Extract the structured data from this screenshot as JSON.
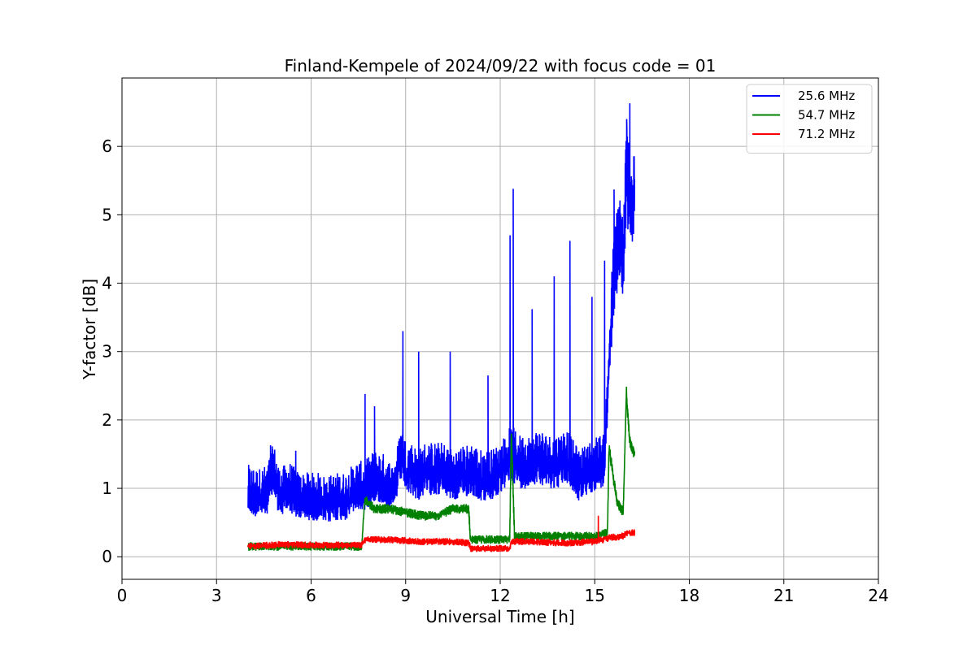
{
  "chart_data": {
    "type": "line",
    "title": "Finland-Kempele of 2024/09/22 with focus code = 01",
    "xlabel": "Universal Time [h]",
    "ylabel": "Y-factor [dB]",
    "xlim": [
      0,
      24
    ],
    "ylim": [
      -0.33,
      7.0
    ],
    "xticks": [
      0,
      3,
      6,
      9,
      12,
      15,
      18,
      21,
      24
    ],
    "yticks": [
      0,
      1,
      2,
      3,
      4,
      5,
      6
    ],
    "grid": true,
    "legend_position": "top-right",
    "series": [
      {
        "name": "25.6 MHz",
        "color": "#0000ff",
        "x": [
          4.0,
          4.3,
          4.6,
          4.8,
          5.0,
          5.3,
          5.6,
          5.9,
          6.2,
          6.5,
          6.8,
          7.1,
          7.4,
          7.7,
          8.0,
          8.3,
          8.6,
          8.9,
          9.0,
          9.2,
          9.4,
          9.6,
          9.9,
          10.2,
          10.5,
          10.8,
          11.1,
          11.4,
          11.7,
          12.0,
          12.3,
          12.4,
          12.6,
          12.9,
          13.2,
          13.5,
          13.8,
          14.1,
          14.2,
          14.5,
          14.8,
          15.1,
          15.3,
          15.5,
          15.6,
          15.8,
          15.9,
          16.0,
          16.1,
          16.2,
          16.25
        ],
        "values": [
          0.9,
          0.85,
          0.9,
          1.2,
          0.85,
          0.95,
          0.8,
          0.8,
          0.8,
          0.75,
          0.8,
          0.8,
          0.95,
          0.95,
          1.1,
          1.05,
          0.9,
          1.5,
          1.2,
          1.2,
          1.1,
          1.2,
          1.2,
          1.2,
          1.1,
          1.15,
          1.2,
          1.1,
          1.1,
          1.2,
          1.4,
          1.4,
          1.3,
          1.3,
          1.4,
          1.3,
          1.3,
          1.4,
          1.3,
          1.1,
          1.2,
          1.3,
          1.3,
          3.2,
          4.0,
          4.6,
          4.2,
          5.5,
          5.2,
          5.0,
          5.3
        ],
        "spikes": [
          [
            4.7,
            1.63
          ],
          [
            5.5,
            1.55
          ],
          [
            7.7,
            2.38
          ],
          [
            8.0,
            2.2
          ],
          [
            8.9,
            3.3
          ],
          [
            9.4,
            3.0
          ],
          [
            10.4,
            3.0
          ],
          [
            11.6,
            2.65
          ],
          [
            12.3,
            4.7
          ],
          [
            12.4,
            5.38
          ],
          [
            13.0,
            3.62
          ],
          [
            13.7,
            4.1
          ],
          [
            14.2,
            4.62
          ],
          [
            14.9,
            3.8
          ],
          [
            15.3,
            4.33
          ],
          [
            15.6,
            5.37
          ],
          [
            16.0,
            6.4
          ],
          [
            16.1,
            6.63
          ]
        ],
        "noise": 0.22
      },
      {
        "name": "54.7 MHz",
        "color": "#008000",
        "x": [
          4.0,
          5.0,
          6.0,
          7.0,
          7.6,
          7.7,
          8.0,
          8.5,
          9.0,
          9.5,
          10.0,
          10.5,
          11.0,
          11.05,
          12.0,
          12.3,
          12.35,
          12.45,
          13.0,
          14.0,
          15.0,
          15.4,
          15.45,
          15.7,
          15.9,
          16.0,
          16.1,
          16.25
        ],
        "values": [
          0.15,
          0.15,
          0.15,
          0.15,
          0.15,
          0.85,
          0.7,
          0.7,
          0.65,
          0.6,
          0.6,
          0.7,
          0.7,
          0.25,
          0.25,
          0.25,
          1.85,
          0.3,
          0.3,
          0.3,
          0.3,
          0.35,
          1.6,
          0.8,
          0.65,
          2.4,
          1.7,
          1.5
        ],
        "spikes": [],
        "noise": 0.06
      },
      {
        "name": "71.2 MHz",
        "color": "#ff0000",
        "x": [
          4.0,
          5.0,
          6.0,
          7.0,
          7.6,
          7.7,
          8.5,
          9.5,
          10.5,
          11.0,
          11.05,
          12.0,
          12.3,
          12.35,
          13.0,
          14.0,
          15.0,
          15.5,
          15.9,
          16.0,
          16.25
        ],
        "values": [
          0.15,
          0.18,
          0.17,
          0.17,
          0.17,
          0.25,
          0.25,
          0.22,
          0.22,
          0.2,
          0.12,
          0.12,
          0.12,
          0.22,
          0.22,
          0.2,
          0.22,
          0.28,
          0.3,
          0.35,
          0.35
        ],
        "spikes": [
          [
            15.1,
            0.6
          ]
        ],
        "noise": 0.05
      }
    ]
  }
}
